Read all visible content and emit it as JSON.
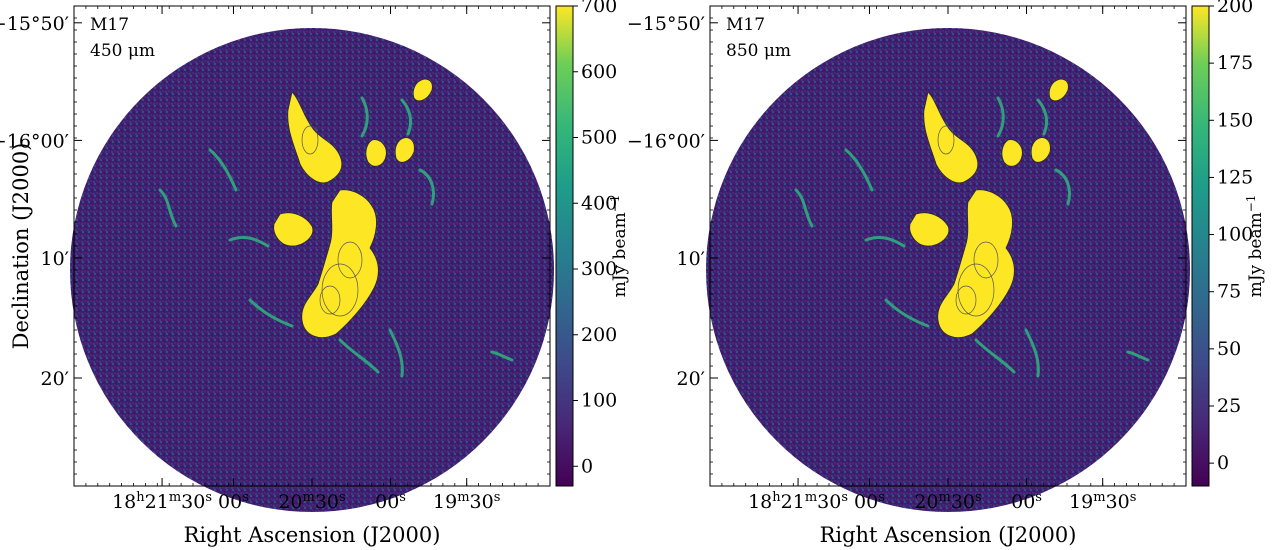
{
  "chart_data": [
    {
      "type": "heatmap",
      "source_label": "M17",
      "wavelength_label": "450 μm",
      "xlabel": "Right Ascension (J2000)",
      "ylabel": "Declination (J2000)",
      "x_ticks": [
        {
          "label": "18h21m30s",
          "h": "18",
          "m": "21",
          "s": "30"
        },
        {
          "label": "00s",
          "s": "00"
        },
        {
          "label": "20m30s",
          "m": "20",
          "s": "30"
        },
        {
          "label": "00s",
          "s": "00"
        },
        {
          "label": "19m30s",
          "m": "19",
          "s": "30"
        }
      ],
      "y_ticks": [
        {
          "label": "−15°50′",
          "deg": "−15°",
          "min": "50′"
        },
        {
          "label": "−16°00′",
          "deg": "−16°",
          "min": "00′"
        },
        {
          "label": "10′",
          "min": "10′"
        },
        {
          "label": "20′",
          "min": "20′"
        }
      ],
      "colorbar": {
        "label": "mJy beam−1",
        "label_main": "mJy beam",
        "label_exp": "−1",
        "colormap": "viridis",
        "ticks": [
          0,
          100,
          200,
          300,
          400,
          500,
          600,
          700
        ],
        "vmin": -30,
        "vmax": 700
      }
    },
    {
      "type": "heatmap",
      "source_label": "M17",
      "wavelength_label": "850 μm",
      "xlabel": "Right Ascension (J2000)",
      "ylabel": "",
      "x_ticks": [
        {
          "label": "18h21m30s",
          "h": "18",
          "m": "21",
          "s": "30"
        },
        {
          "label": "00s",
          "s": "00"
        },
        {
          "label": "20m30s",
          "m": "20",
          "s": "30"
        },
        {
          "label": "00s",
          "s": "00"
        },
        {
          "label": "19m30s",
          "m": "19",
          "s": "30"
        }
      ],
      "y_ticks": [
        {
          "label": "−15°50′",
          "deg": "−15°",
          "min": "50′"
        },
        {
          "label": "−16°00′",
          "deg": "−16°",
          "min": "00′"
        },
        {
          "label": "10′",
          "min": "10′"
        },
        {
          "label": "20′",
          "min": "20′"
        }
      ],
      "colorbar": {
        "label": "mJy beam−1",
        "label_main": "mJy beam",
        "label_exp": "−1",
        "colormap": "viridis",
        "ticks": [
          0,
          25,
          50,
          75,
          100,
          125,
          150,
          175,
          200
        ],
        "vmin": -10,
        "vmax": 200
      }
    }
  ],
  "colors": {
    "background": "#430d59",
    "low": "#3b2a7a",
    "mid": "#21918c",
    "high": "#fde725",
    "contour": "#444444"
  }
}
